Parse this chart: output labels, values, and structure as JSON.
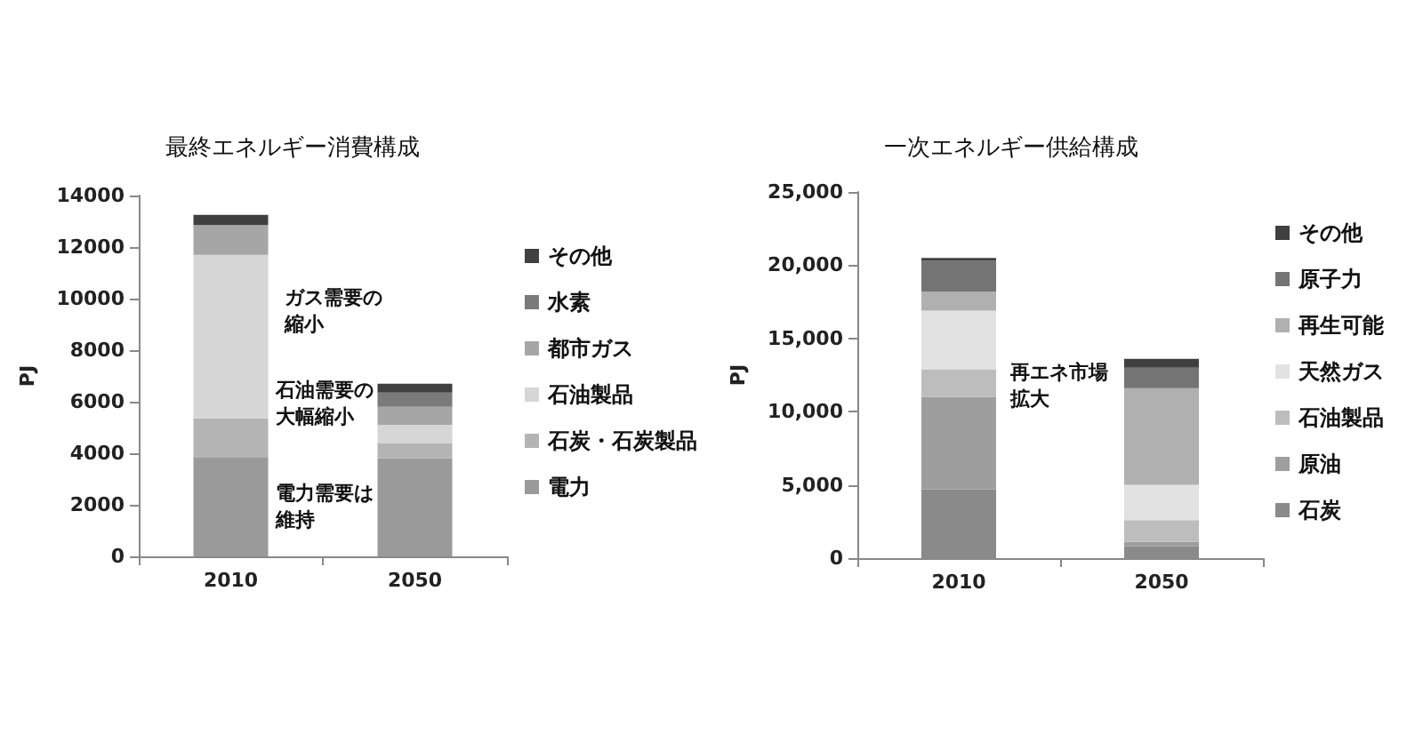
{
  "chart_data": [
    {
      "type": "bar",
      "title": "最終エネルギー消費構成",
      "ylabel": "PJ",
      "categories": [
        "2010",
        "2050"
      ],
      "stacked": true,
      "legend": "right",
      "grid": false,
      "ylim": [
        0,
        14000
      ],
      "yticks": [
        0,
        2000,
        4000,
        6000,
        8000,
        10000,
        12000,
        14000
      ],
      "series": [
        {
          "name": "電力",
          "color": "#9a9a9a",
          "values": [
            3850,
            3800
          ]
        },
        {
          "name": "石炭・石炭製品",
          "color": "#b4b4b4",
          "values": [
            1500,
            600
          ]
        },
        {
          "name": "石油製品",
          "color": "#d6d6d6",
          "values": [
            6350,
            700
          ]
        },
        {
          "name": "都市ガス",
          "color": "#a6a6a6",
          "values": [
            1150,
            700
          ]
        },
        {
          "name": "水素",
          "color": "#7a7a7a",
          "values": [
            0,
            550
          ]
        },
        {
          "name": "その他",
          "color": "#404040",
          "values": [
            400,
            350
          ]
        }
      ],
      "annotations": [
        "ガス需要の縮小",
        "石油需要の大幅縮小",
        "電力需要は維持"
      ]
    },
    {
      "type": "bar",
      "title": "一次エネルギー供給構成",
      "ylabel": "PJ",
      "categories": [
        "2010",
        "2050"
      ],
      "stacked": true,
      "legend": "right",
      "grid": false,
      "ylim": [
        0,
        25000
      ],
      "yticks": [
        {
          "value": 0,
          "label": "0"
        },
        {
          "value": 5000,
          "label": "5,000"
        },
        {
          "value": 10000,
          "label": "10,000"
        },
        {
          "value": 15000,
          "label": "15,000"
        },
        {
          "value": 20000,
          "label": "20,000"
        },
        {
          "value": 25000,
          "label": "25,000"
        }
      ],
      "series": [
        {
          "name": "石炭",
          "color": "#8a8a8a",
          "values": [
            4700,
            800
          ]
        },
        {
          "name": "原油",
          "color": "#9e9e9e",
          "values": [
            6300,
            300
          ]
        },
        {
          "name": "石油製品",
          "color": "#bdbdbd",
          "values": [
            1900,
            1500
          ]
        },
        {
          "name": "天然ガス",
          "color": "#e2e2e2",
          "values": [
            4000,
            2400
          ]
        },
        {
          "name": "再生可能",
          "color": "#b0b0b0",
          "values": [
            1300,
            6600
          ]
        },
        {
          "name": "原子力",
          "color": "#747474",
          "values": [
            2100,
            1400
          ]
        },
        {
          "name": "その他",
          "color": "#404040",
          "values": [
            200,
            600
          ]
        }
      ],
      "annotations": [
        "再エネ市場拡大"
      ]
    }
  ]
}
